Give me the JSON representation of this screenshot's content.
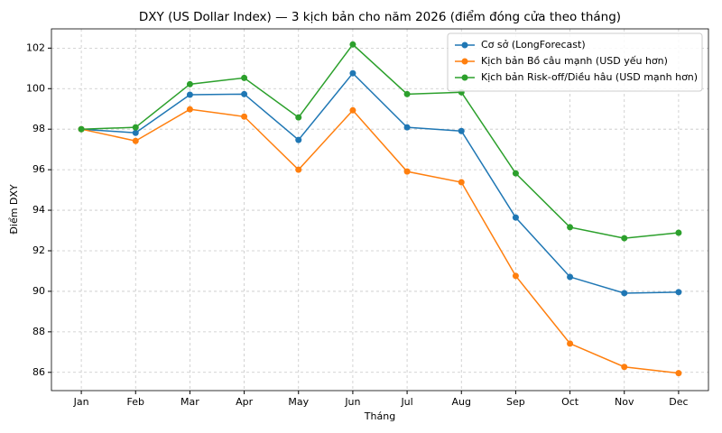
{
  "chart_data": {
    "type": "line",
    "title": "DXY (US Dollar Index) — 3 kịch bản cho năm 2026 (điểm đóng cửa theo tháng)",
    "x_label": "Tháng",
    "y_label": "Điểm DXY",
    "categories": [
      "Jan",
      "Feb",
      "Mar",
      "Apr",
      "May",
      "Jun",
      "Jul",
      "Aug",
      "Sep",
      "Oct",
      "Nov",
      "Dec"
    ],
    "series": [
      {
        "name": "Cơ sở (LongForecast)",
        "color": "#1f77b4",
        "values": [
          98.0,
          97.82,
          99.7,
          99.73,
          97.47,
          100.76,
          98.09,
          97.91,
          93.64,
          90.71,
          89.91,
          89.96
        ]
      },
      {
        "name": "Kịch bản Bồ câu mạnh (USD yếu hơn)",
        "color": "#ff7f0e",
        "values": [
          98.0,
          97.42,
          98.98,
          98.62,
          96.0,
          98.93,
          95.91,
          95.38,
          90.76,
          87.42,
          86.27,
          85.96
        ]
      },
      {
        "name": "Kịch bản Risk-off/Diều hâu (USD mạnh hơn)",
        "color": "#2ca02c",
        "values": [
          98.0,
          98.09,
          100.22,
          100.53,
          98.58,
          102.18,
          99.73,
          99.82,
          95.82,
          93.16,
          92.62,
          92.89
        ]
      }
    ],
    "ylim": [
      85.1,
      102.95
    ],
    "yticks": [
      86,
      88,
      90,
      92,
      94,
      96,
      98,
      100,
      102
    ],
    "grid": true,
    "legend": "upper right"
  }
}
